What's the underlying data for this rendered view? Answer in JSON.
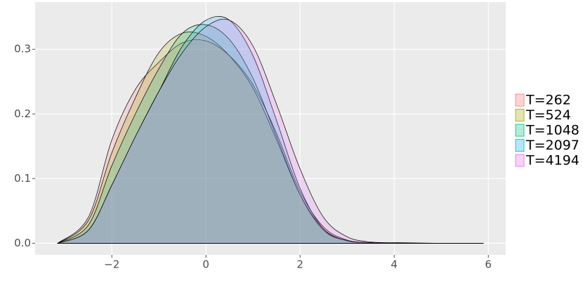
{
  "chart_data": {
    "type": "density",
    "x": [
      -3.15,
      -2.5,
      -2,
      -1.5,
      -1,
      -0.5,
      0,
      0.5,
      1,
      1.5,
      2,
      2.5,
      3,
      3.5,
      4,
      5,
      5.9
    ],
    "series": [
      {
        "name": "T=262",
        "color": "#F8766D",
        "values": [
          0,
          0.04,
          0.16,
          0.238,
          0.28,
          0.31,
          0.313,
          0.29,
          0.245,
          0.17,
          0.08,
          0.025,
          0.005,
          0.001,
          0,
          0,
          0
        ]
      },
      {
        "name": "T=524",
        "color": "#A3A500",
        "values": [
          0,
          0.035,
          0.14,
          0.225,
          0.295,
          0.325,
          0.32,
          0.29,
          0.24,
          0.16,
          0.075,
          0.022,
          0.004,
          0.001,
          0,
          0,
          0
        ]
      },
      {
        "name": "T=1048",
        "color": "#00BF7D",
        "values": [
          0,
          0.028,
          0.12,
          0.2,
          0.27,
          0.325,
          0.338,
          0.315,
          0.255,
          0.165,
          0.075,
          0.02,
          0.004,
          0.001,
          0,
          0,
          0
        ]
      },
      {
        "name": "T=2097",
        "color": "#00B0F6",
        "values": [
          0,
          0.02,
          0.09,
          0.165,
          0.235,
          0.305,
          0.345,
          0.345,
          0.29,
          0.19,
          0.085,
          0.022,
          0.004,
          0.001,
          0,
          0,
          0
        ]
      },
      {
        "name": "T=4194",
        "color": "#E76BF3",
        "values": [
          0,
          0.02,
          0.09,
          0.165,
          0.235,
          0.295,
          0.335,
          0.345,
          0.305,
          0.215,
          0.115,
          0.04,
          0.01,
          0.002,
          0.001,
          0,
          0
        ]
      }
    ],
    "xlim": [
      -3.63,
      6.37
    ],
    "ylim": [
      -0.018,
      0.373
    ],
    "xticks": [
      {
        "value": -2,
        "label": "−2"
      },
      0,
      2,
      4,
      6
    ],
    "yticks": [
      {
        "value": 0,
        "label": "0.0"
      },
      0.1,
      0.2,
      0.3
    ],
    "grid": true,
    "legend": "right"
  }
}
